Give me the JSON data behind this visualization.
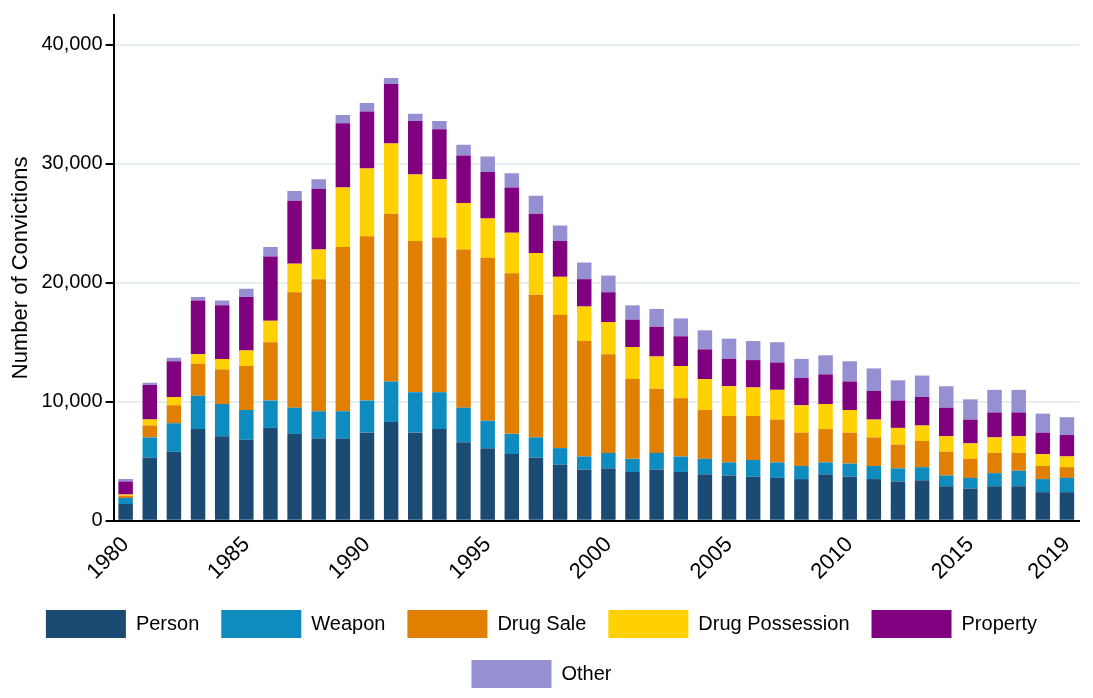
{
  "chart_data": {
    "type": "bar",
    "stacked": true,
    "ylabel": "Number of Convictions",
    "categories": [
      "1980",
      null,
      null,
      null,
      null,
      "1985",
      null,
      null,
      null,
      null,
      "1990",
      null,
      null,
      null,
      null,
      "1995",
      null,
      null,
      null,
      null,
      "2000",
      null,
      null,
      null,
      null,
      "2005",
      null,
      null,
      null,
      null,
      "2010",
      null,
      null,
      null,
      null,
      "2015",
      null,
      null,
      null,
      "2019"
    ],
    "ylim": [
      0,
      42500
    ],
    "yticks": [
      0,
      {
        "value": 10000,
        "label": "10,000"
      },
      {
        "value": 20000,
        "label": "20,000"
      },
      {
        "value": 30000,
        "label": "30,000"
      },
      {
        "value": 40000,
        "label": "40,000"
      }
    ],
    "grid": "y",
    "legend": "bottom",
    "series": [
      {
        "name": "Person",
        "color": "#1b4a72",
        "values": [
          1400,
          5300,
          5800,
          7700,
          7100,
          6800,
          7800,
          7300,
          6900,
          6900,
          7400,
          8300,
          7400,
          7700,
          6600,
          6100,
          5600,
          5300,
          4700,
          4300,
          4400,
          4100,
          4300,
          4100,
          3900,
          3800,
          3700,
          3600,
          3500,
          3900,
          3700,
          3500,
          3300,
          3400,
          2900,
          2700,
          2900,
          2900,
          2400,
          2400
        ]
      },
      {
        "name": "Weapon",
        "color": "#0e8cc0",
        "values": [
          500,
          1700,
          2400,
          2800,
          2700,
          2500,
          2300,
          2200,
          2300,
          2300,
          2700,
          3400,
          3400,
          3100,
          2900,
          2300,
          1700,
          1700,
          1400,
          1100,
          1300,
          1100,
          1400,
          1300,
          1300,
          1100,
          1400,
          1300,
          1100,
          1000,
          1100,
          1100,
          1100,
          1100,
          900,
          900,
          1100,
          1300,
          1100,
          1200
        ]
      },
      {
        "name": "Drug Sale",
        "color": "#e07f00",
        "values": [
          200,
          1000,
          1500,
          2700,
          2900,
          3700,
          4900,
          9700,
          11100,
          13800,
          13800,
          14100,
          12700,
          13000,
          13300,
          13700,
          13500,
          12000,
          11200,
          9700,
          8300,
          6700,
          5400,
          4900,
          4100,
          3900,
          3700,
          3600,
          2800,
          2800,
          2600,
          2400,
          2000,
          2200,
          2000,
          1600,
          1700,
          1500,
          1100,
          900
        ]
      },
      {
        "name": "Drug Possession",
        "color": "#ffd100",
        "values": [
          100,
          500,
          700,
          800,
          900,
          1300,
          1800,
          2400,
          2500,
          5000,
          5700,
          5900,
          5600,
          4900,
          3900,
          3300,
          3400,
          3500,
          3200,
          2900,
          2700,
          2700,
          2700,
          2700,
          2600,
          2500,
          2400,
          2500,
          2300,
          2100,
          1900,
          1500,
          1400,
          1300,
          1300,
          1300,
          1300,
          1400,
          1000,
          900
        ]
      },
      {
        "name": "Property",
        "color": "#800080",
        "values": [
          1100,
          2900,
          3000,
          4500,
          4500,
          4500,
          5400,
          5300,
          5100,
          5400,
          4800,
          5000,
          4500,
          4200,
          4000,
          3900,
          3800,
          3300,
          3000,
          2300,
          2500,
          2300,
          2500,
          2500,
          2500,
          2300,
          2300,
          2300,
          2300,
          2500,
          2400,
          2400,
          2300,
          2400,
          2400,
          2000,
          2100,
          2000,
          1800,
          1800
        ]
      },
      {
        "name": "Other",
        "color": "#9590d1",
        "values": [
          200,
          200,
          300,
          300,
          400,
          700,
          800,
          800,
          800,
          700,
          700,
          500,
          600,
          700,
          900,
          1300,
          1200,
          1500,
          1300,
          1400,
          1400,
          1200,
          1500,
          1500,
          1600,
          1700,
          1600,
          1700,
          1600,
          1600,
          1700,
          1900,
          1700,
          1800,
          1800,
          1700,
          1900,
          1900,
          1600,
          1500
        ]
      }
    ]
  }
}
